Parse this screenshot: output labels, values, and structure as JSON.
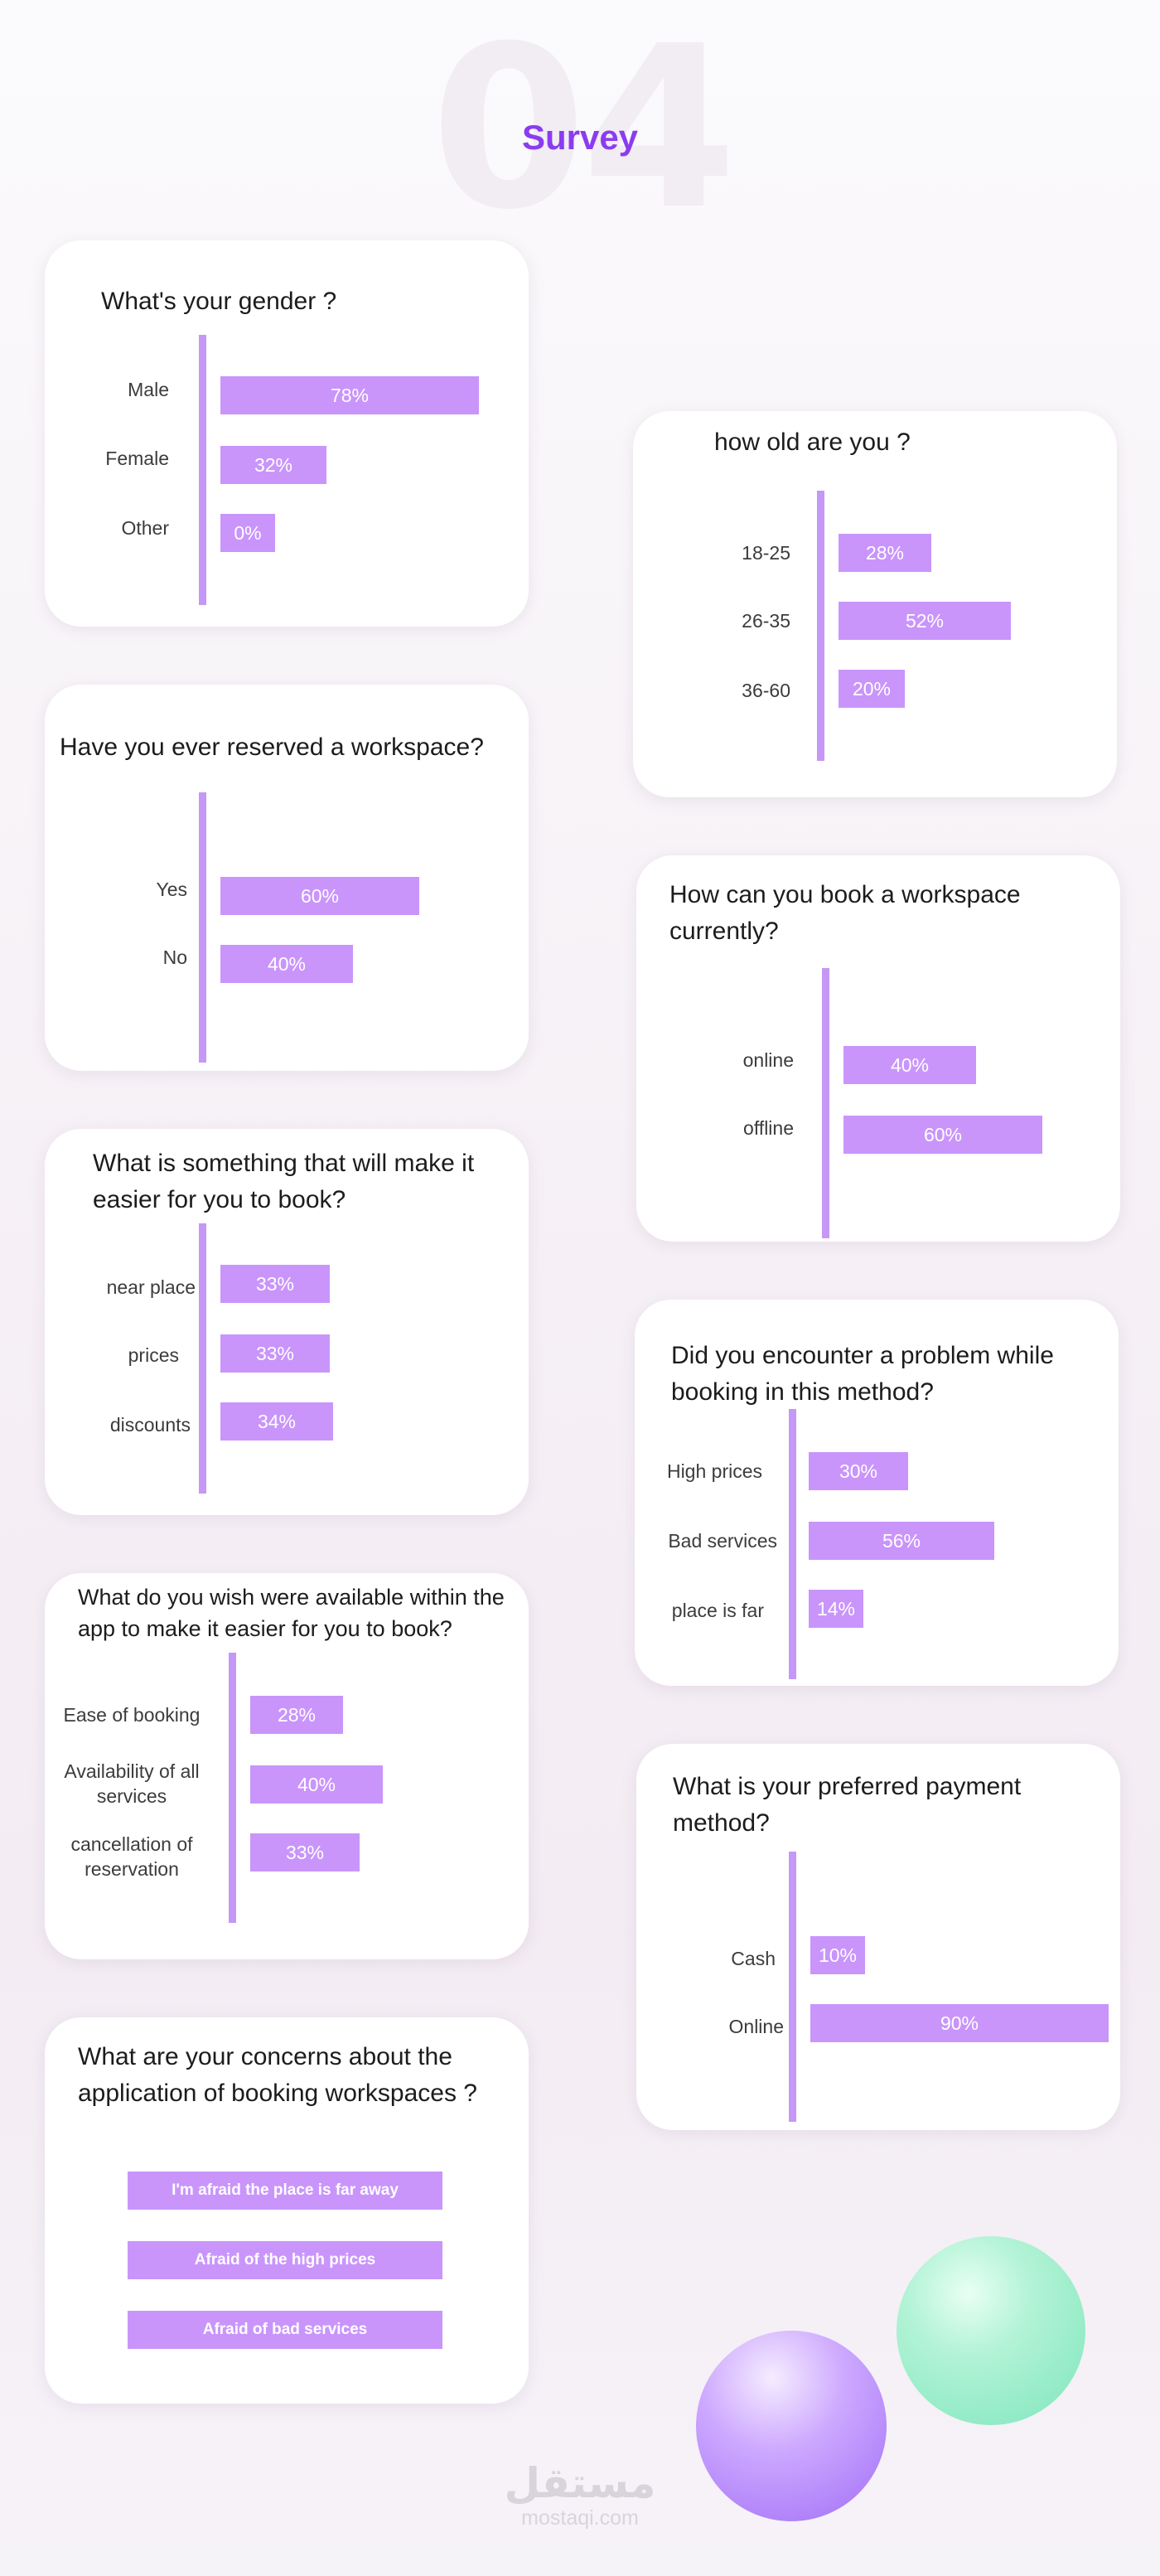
{
  "header": {
    "number": "04",
    "title": "Survey"
  },
  "colors": {
    "accent": "#8b3cf0",
    "bar": "#c995fb",
    "axis": "#c597f6",
    "card": "#ffffff"
  },
  "chart_data": [
    {
      "type": "bar",
      "orientation": "horizontal",
      "title": "What's your gender ?",
      "categories": [
        "Male",
        "Female",
        "Other"
      ],
      "values": [
        78,
        32,
        0
      ],
      "value_labels": [
        "78%",
        "32%",
        "0%"
      ],
      "unit": "%"
    },
    {
      "type": "bar",
      "orientation": "horizontal",
      "title": "how old are you ?",
      "categories": [
        "18-25",
        "26-35",
        "36-60"
      ],
      "values": [
        28,
        52,
        20
      ],
      "value_labels": [
        "28%",
        "52%",
        "20%"
      ],
      "unit": "%"
    },
    {
      "type": "bar",
      "orientation": "horizontal",
      "title": "Have you ever reserved a workspace?",
      "categories": [
        "Yes",
        "No"
      ],
      "values": [
        60,
        40
      ],
      "value_labels": [
        "60%",
        "40%"
      ],
      "unit": "%"
    },
    {
      "type": "bar",
      "orientation": "horizontal",
      "title": "How can you book a workspace currently?",
      "categories": [
        "online",
        "offline"
      ],
      "values": [
        40,
        60
      ],
      "value_labels": [
        "40%",
        "60%"
      ],
      "unit": "%"
    },
    {
      "type": "bar",
      "orientation": "horizontal",
      "title": "What is something that will make it easier for you to book?",
      "categories": [
        "near place",
        "prices",
        "discounts"
      ],
      "values": [
        33,
        33,
        34
      ],
      "value_labels": [
        "33%",
        "33%",
        "34%"
      ],
      "unit": "%"
    },
    {
      "type": "bar",
      "orientation": "horizontal",
      "title": "Did you encounter a problem while booking in this method?",
      "categories": [
        "High prices",
        "Bad services",
        "place is far"
      ],
      "values": [
        30,
        56,
        14
      ],
      "value_labels": [
        "30%",
        "56%",
        "14%"
      ],
      "unit": "%"
    },
    {
      "type": "bar",
      "orientation": "horizontal",
      "title": "What do you wish were available within the app to make it easier for you to book?",
      "categories": [
        "Ease of booking",
        "Availability of all services",
        "cancellation of reservation"
      ],
      "values": [
        28,
        40,
        33
      ],
      "value_labels": [
        "28%",
        "40%",
        "33%"
      ],
      "unit": "%"
    },
    {
      "type": "bar",
      "orientation": "horizontal",
      "title": "What is your preferred payment method?",
      "categories": [
        "Cash",
        "Online"
      ],
      "values": [
        10,
        90
      ],
      "value_labels": [
        "10%",
        "90%"
      ],
      "unit": "%"
    }
  ],
  "concerns": {
    "title": "What are your concerns about the application of booking workspaces ?",
    "items": [
      "I'm afraid the place is far away",
      "Afraid of the high prices",
      "Afraid of bad services"
    ]
  },
  "watermark": {
    "logo": "مستقل",
    "url": "mostaqi.com"
  }
}
